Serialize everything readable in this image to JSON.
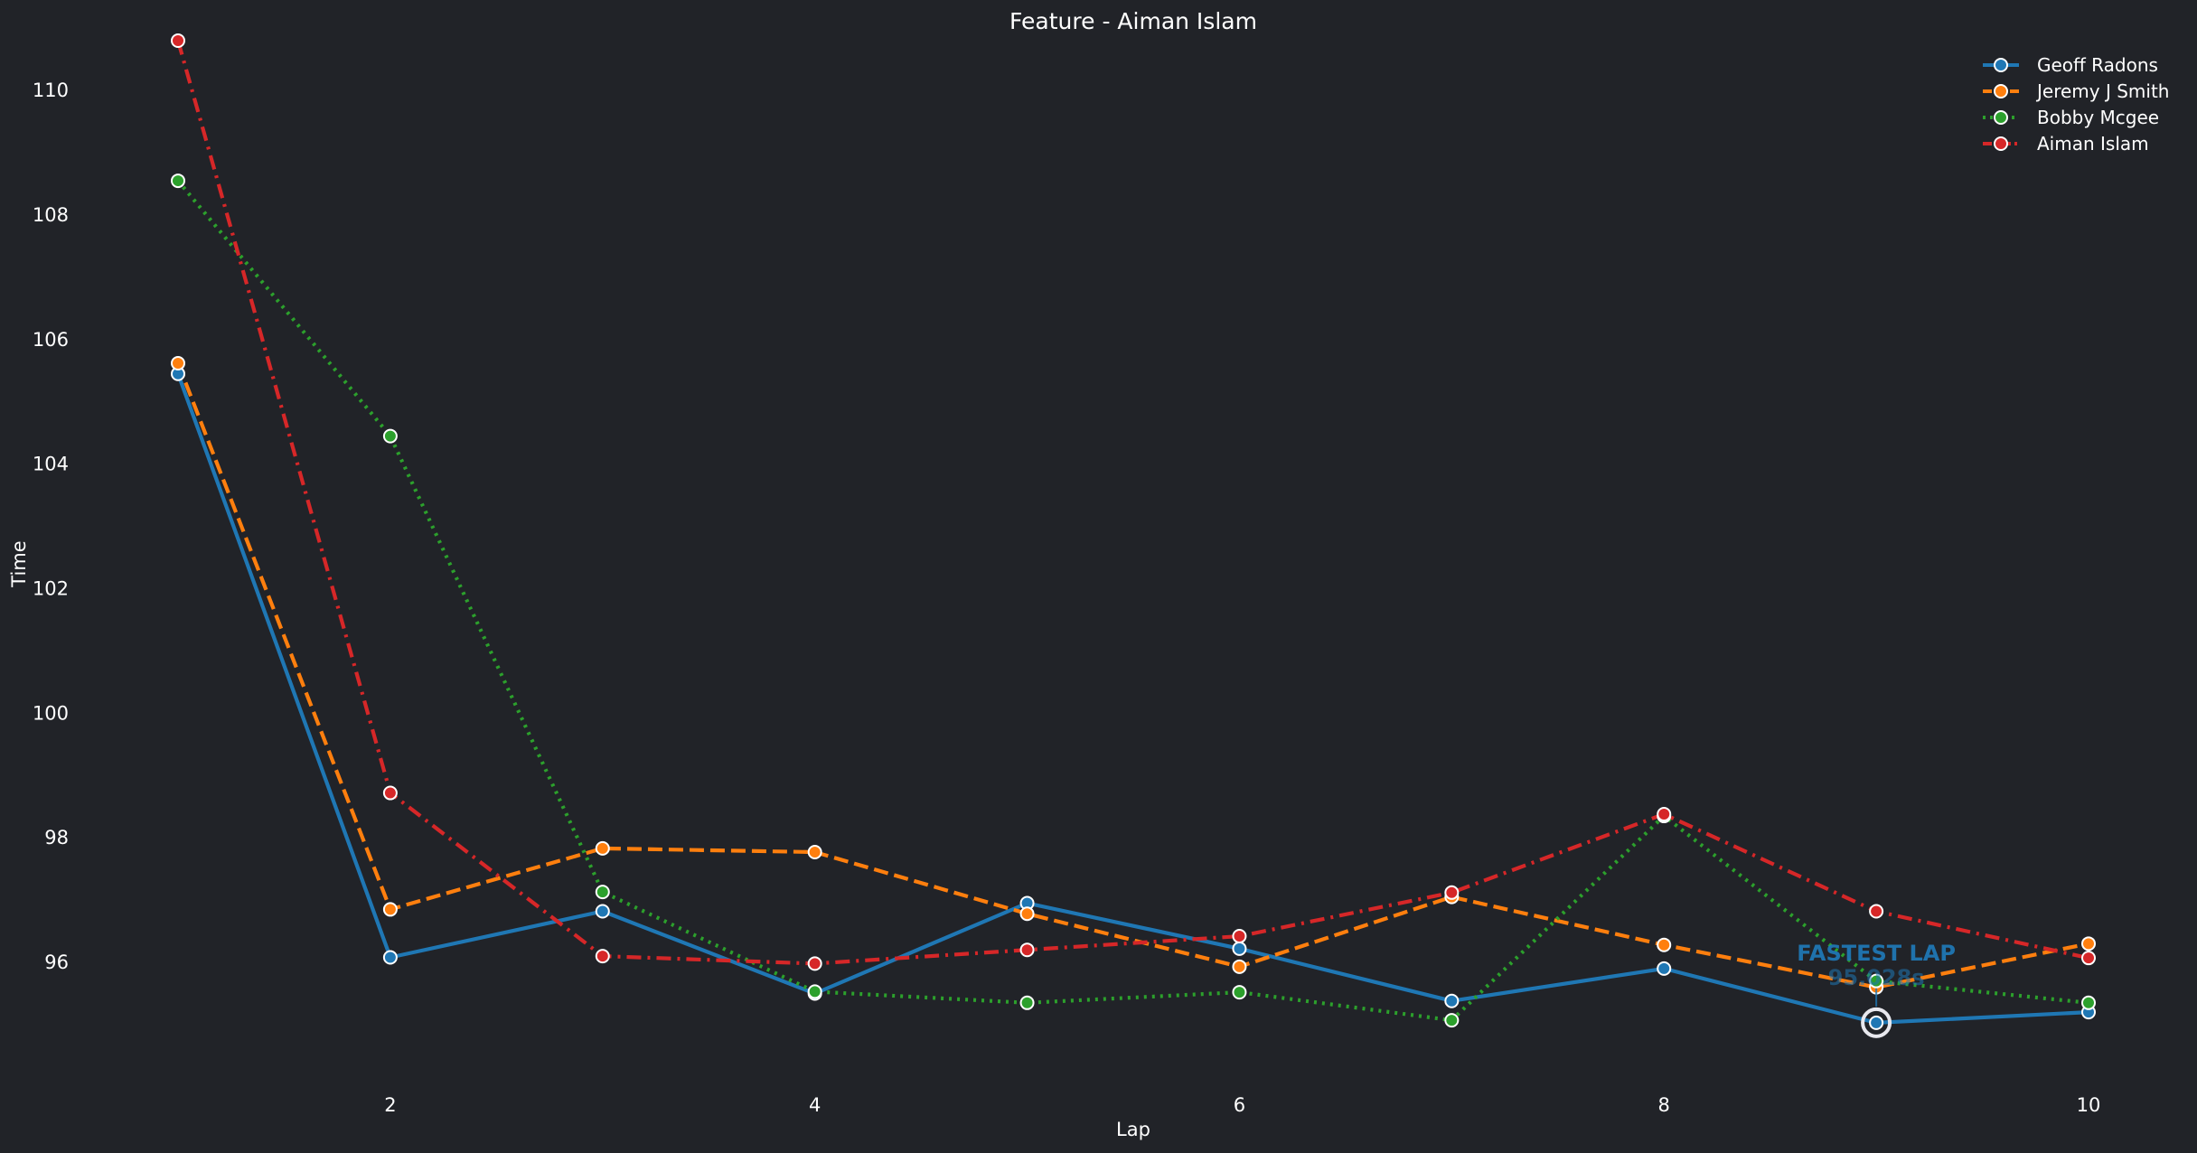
{
  "chart_data": {
    "type": "line",
    "title": "Feature - Aiman Islam",
    "xlabel": "Lap",
    "ylabel": "Time",
    "xlim": [
      1,
      10
    ],
    "ylim": [
      93.5,
      110.8
    ],
    "xticks": [
      2,
      4,
      6,
      8,
      10
    ],
    "yticks": [
      96,
      98,
      100,
      102,
      104,
      106,
      108,
      110
    ],
    "grid": false,
    "legend_position": "top-right",
    "x": [
      1,
      2,
      3,
      4,
      5,
      6,
      7,
      8,
      9,
      10
    ],
    "series": [
      {
        "name": "Geoff Radons",
        "color": "#1f77b4",
        "line_style": "solid",
        "values": [
          105.45,
          96.08,
          96.82,
          95.5,
          96.95,
          96.22,
          95.38,
          95.9,
          95.03,
          95.2
        ]
      },
      {
        "name": "Jeremy J Smith",
        "color": "#ff7f0e",
        "line_style": "dashed",
        "values": [
          105.62,
          96.85,
          97.83,
          97.77,
          96.78,
          95.93,
          97.05,
          96.28,
          95.6,
          96.3
        ]
      },
      {
        "name": "Bobby Mcgee",
        "color": "#2ca02c",
        "line_style": "dotted",
        "values": [
          108.55,
          104.45,
          97.13,
          95.53,
          95.35,
          95.52,
          95.07,
          98.35,
          95.7,
          95.35
        ]
      },
      {
        "name": "Aiman Islam",
        "color": "#d62728",
        "line_style": "dashdot",
        "values": [
          110.8,
          98.72,
          96.1,
          95.98,
          96.2,
          96.42,
          97.12,
          98.38,
          96.82,
          96.07
        ]
      }
    ],
    "annotation": {
      "title": "FASTEST LAP",
      "value_label": "95.028s",
      "series": "Geoff Radons",
      "x": 9,
      "y": 95.03,
      "color": "#1f77b4"
    }
  }
}
